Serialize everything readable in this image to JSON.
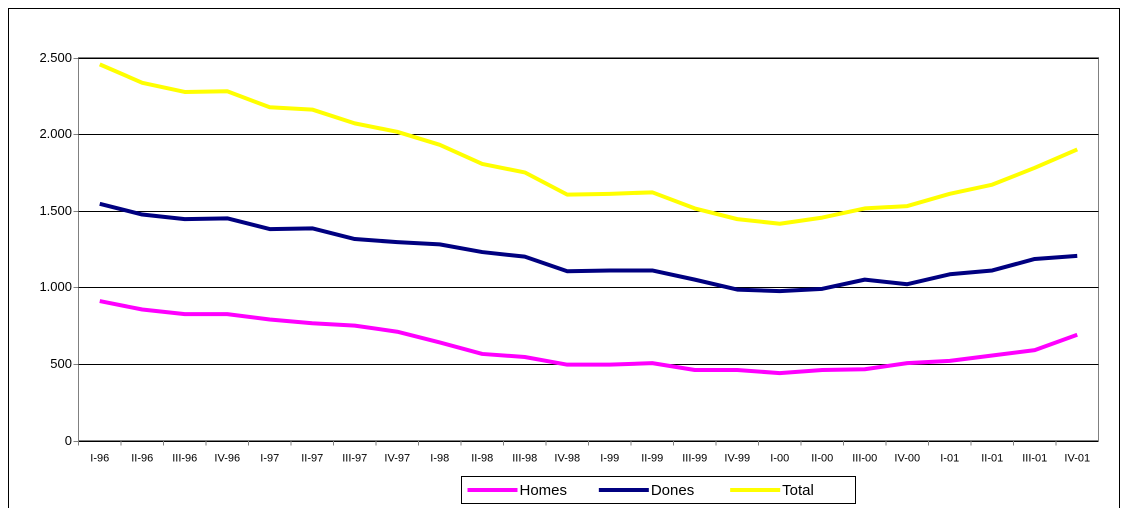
{
  "chart_data": {
    "type": "line",
    "categories": [
      "I-96",
      "II-96",
      "III-96",
      "IV-96",
      "I-97",
      "II-97",
      "III-97",
      "IV-97",
      "I-98",
      "II-98",
      "III-98",
      "IV-98",
      "I-99",
      "II-99",
      "III-99",
      "IV-99",
      "I-00",
      "II-00",
      "III-00",
      "IV-00",
      "I-01",
      "II-01",
      "III-01",
      "IV-01"
    ],
    "series": [
      {
        "name": "Homes",
        "color": "#ff00ff",
        "values": [
          910,
          855,
          825,
          825,
          790,
          765,
          750,
          710,
          640,
          565,
          545,
          495,
          495,
          505,
          460,
          460,
          440,
          460,
          465,
          505,
          520,
          555,
          590,
          690
        ]
      },
      {
        "name": "Dones",
        "color": "#000080",
        "values": [
          1545,
          1475,
          1445,
          1450,
          1380,
          1385,
          1315,
          1295,
          1280,
          1230,
          1200,
          1105,
          1110,
          1110,
          1050,
          985,
          975,
          990,
          1050,
          1020,
          1085,
          1110,
          1185,
          1205
        ]
      },
      {
        "name": "Total",
        "color": "#ffff00",
        "values": [
          2455,
          2335,
          2275,
          2280,
          2175,
          2160,
          2070,
          2015,
          1930,
          1805,
          1750,
          1605,
          1610,
          1620,
          1515,
          1445,
          1415,
          1455,
          1515,
          1530,
          1610,
          1670,
          1780,
          1900
        ]
      }
    ],
    "ylim": [
      0,
      2500
    ],
    "yticks": [
      0,
      500,
      {
        "value": 1000,
        "label": "1.000"
      },
      {
        "value": 1500,
        "label": "1.500"
      },
      {
        "value": 2000,
        "label": "2.000"
      },
      {
        "value": 2500,
        "label": "2.500"
      }
    ],
    "grid": true,
    "legend": "bottom"
  }
}
